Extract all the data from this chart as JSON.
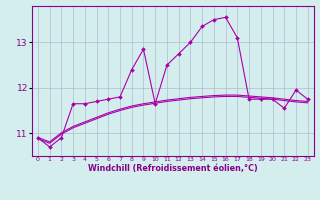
{
  "x": [
    0,
    1,
    2,
    3,
    4,
    5,
    6,
    7,
    8,
    9,
    10,
    11,
    12,
    13,
    14,
    15,
    16,
    17,
    18,
    19,
    20,
    21,
    22,
    23
  ],
  "y_line": [
    10.9,
    10.7,
    10.9,
    11.65,
    11.65,
    11.7,
    11.75,
    11.8,
    12.4,
    12.85,
    11.65,
    12.5,
    12.75,
    13.0,
    13.35,
    13.5,
    13.55,
    13.1,
    11.75,
    11.75,
    11.75,
    11.55,
    11.95,
    11.75
  ],
  "y_smooth1": [
    10.88,
    10.78,
    10.98,
    11.12,
    11.22,
    11.32,
    11.42,
    11.5,
    11.57,
    11.62,
    11.66,
    11.7,
    11.73,
    11.76,
    11.78,
    11.8,
    11.81,
    11.81,
    11.79,
    11.77,
    11.75,
    11.72,
    11.69,
    11.67
  ],
  "y_smooth2": [
    10.91,
    10.81,
    11.01,
    11.15,
    11.25,
    11.35,
    11.45,
    11.53,
    11.6,
    11.65,
    11.69,
    11.73,
    11.76,
    11.79,
    11.81,
    11.83,
    11.84,
    11.84,
    11.82,
    11.8,
    11.78,
    11.75,
    11.72,
    11.7
  ],
  "line_color": "#aa00aa",
  "smooth_color": "#aa00aa",
  "bg_color": "#d4eeee",
  "grid_color": "#aaaacc",
  "text_color": "#880088",
  "xlabel": "Windchill (Refroidissement éolien,°C)",
  "ylim": [
    10.5,
    13.8
  ],
  "yticks": [
    11,
    12,
    13
  ],
  "xlim": [
    -0.5,
    23.5
  ],
  "xticks": [
    0,
    1,
    2,
    3,
    4,
    5,
    6,
    7,
    8,
    9,
    10,
    11,
    12,
    13,
    14,
    15,
    16,
    17,
    18,
    19,
    20,
    21,
    22,
    23
  ]
}
